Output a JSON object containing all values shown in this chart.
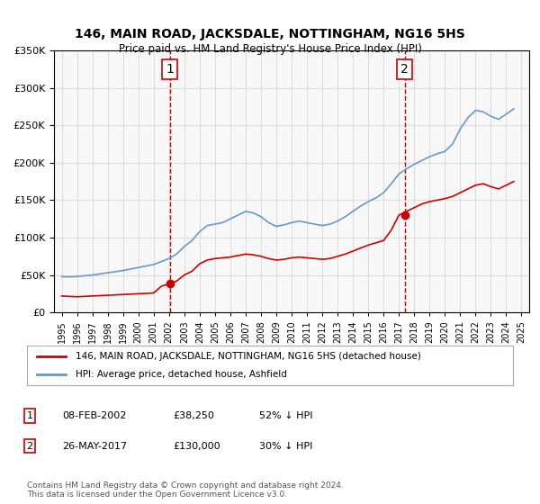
{
  "title": "146, MAIN ROAD, JACKSDALE, NOTTINGHAM, NG16 5HS",
  "subtitle": "Price paid vs. HM Land Registry's House Price Index (HPI)",
  "legend_line1": "146, MAIN ROAD, JACKSDALE, NOTTINGHAM, NG16 5HS (detached house)",
  "legend_line2": "HPI: Average price, detached house, Ashfield",
  "table_rows": [
    [
      "1",
      "08-FEB-2002",
      "£38,250",
      "52% ↓ HPI"
    ],
    [
      "2",
      "26-MAY-2017",
      "£130,000",
      "30% ↓ HPI"
    ]
  ],
  "footer": "Contains HM Land Registry data © Crown copyright and database right 2024.\nThis data is licensed under the Open Government Licence v3.0.",
  "red_line_x": [
    1995.0,
    1995.5,
    1996.0,
    1996.5,
    1997.0,
    1997.5,
    1998.0,
    1998.5,
    1999.0,
    1999.5,
    2000.0,
    2000.5,
    2001.0,
    2001.5,
    2002.0,
    2002.5,
    2003.0,
    2003.5,
    2004.0,
    2004.5,
    2005.0,
    2005.5,
    2006.0,
    2006.5,
    2007.0,
    2007.5,
    2008.0,
    2008.5,
    2009.0,
    2009.5,
    2010.0,
    2010.5,
    2011.0,
    2011.5,
    2012.0,
    2012.5,
    2013.0,
    2013.5,
    2014.0,
    2014.5,
    2015.0,
    2015.5,
    2016.0,
    2016.5,
    2017.0,
    2017.5,
    2018.0,
    2018.5,
    2019.0,
    2019.5,
    2020.0,
    2020.5,
    2021.0,
    2021.5,
    2022.0,
    2022.5,
    2023.0,
    2023.5,
    2024.0,
    2024.5
  ],
  "red_line_y": [
    22000,
    21500,
    21000,
    21500,
    22000,
    22500,
    23000,
    23500,
    24000,
    24500,
    25000,
    25500,
    26000,
    35000,
    38250,
    42000,
    50000,
    55000,
    65000,
    70000,
    72000,
    73000,
    74000,
    76000,
    78000,
    77000,
    75000,
    72000,
    70000,
    71000,
    73000,
    74000,
    73000,
    72000,
    71000,
    72000,
    75000,
    78000,
    82000,
    86000,
    90000,
    93000,
    96000,
    110000,
    130000,
    135000,
    140000,
    145000,
    148000,
    150000,
    152000,
    155000,
    160000,
    165000,
    170000,
    172000,
    168000,
    165000,
    170000,
    175000
  ],
  "blue_line_x": [
    1995.0,
    1995.5,
    1996.0,
    1996.5,
    1997.0,
    1997.5,
    1998.0,
    1998.5,
    1999.0,
    1999.5,
    2000.0,
    2000.5,
    2001.0,
    2001.5,
    2002.0,
    2002.5,
    2003.0,
    2003.5,
    2004.0,
    2004.5,
    2005.0,
    2005.5,
    2006.0,
    2006.5,
    2007.0,
    2007.5,
    2008.0,
    2008.5,
    2009.0,
    2009.5,
    2010.0,
    2010.5,
    2011.0,
    2011.5,
    2012.0,
    2012.5,
    2013.0,
    2013.5,
    2014.0,
    2014.5,
    2015.0,
    2015.5,
    2016.0,
    2016.5,
    2017.0,
    2017.5,
    2018.0,
    2018.5,
    2019.0,
    2019.5,
    2020.0,
    2020.5,
    2021.0,
    2021.5,
    2022.0,
    2022.5,
    2023.0,
    2023.5,
    2024.0,
    2024.5
  ],
  "blue_line_y": [
    48000,
    47500,
    48000,
    49000,
    50000,
    51500,
    53000,
    54500,
    56000,
    58000,
    60000,
    62000,
    64000,
    68000,
    72000,
    78000,
    88000,
    96000,
    108000,
    116000,
    118000,
    120000,
    125000,
    130000,
    135000,
    133000,
    128000,
    120000,
    115000,
    117000,
    120000,
    122000,
    120000,
    118000,
    116000,
    118000,
    122000,
    128000,
    135000,
    142000,
    148000,
    153000,
    160000,
    172000,
    185000,
    192000,
    198000,
    203000,
    208000,
    212000,
    215000,
    225000,
    245000,
    260000,
    270000,
    268000,
    262000,
    258000,
    265000,
    272000
  ],
  "point1_x": 2002.08,
  "point1_y": 38250,
  "point2_x": 2017.4,
  "point2_y": 130000,
  "red_color": "#cc0000",
  "blue_color": "#6699cc",
  "dashed_line_color": "#cc0000",
  "marker_color": "#cc0000",
  "ylim": [
    0,
    350000
  ],
  "xlim": [
    1994.5,
    2025.5
  ],
  "yticks": [
    0,
    50000,
    100000,
    150000,
    200000,
    250000,
    300000,
    350000
  ],
  "xticks": [
    1995,
    1996,
    1997,
    1998,
    1999,
    2000,
    2001,
    2002,
    2003,
    2004,
    2005,
    2006,
    2007,
    2008,
    2009,
    2010,
    2011,
    2012,
    2013,
    2014,
    2015,
    2016,
    2017,
    2018,
    2019,
    2020,
    2021,
    2022,
    2023,
    2024,
    2025
  ],
  "bg_color": "#f8f8f8",
  "grid_color": "#dddddd"
}
